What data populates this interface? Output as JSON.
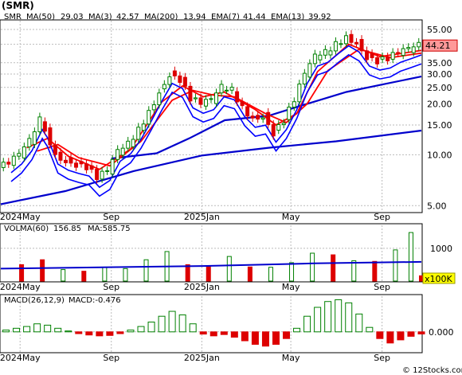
{
  "title": "(SMR)",
  "watermark": "© 12Stocks.com",
  "colors": {
    "up": "#008000",
    "down": "#dd0000",
    "ma_short": "#0000ff",
    "ma_long": "#0000cc",
    "ema": "#ff0000",
    "vol_up": "#008000",
    "vol_down": "#dd0000",
    "macd_up": "#008000",
    "macd_down": "#dd0000",
    "grid": "#bbbbbb",
    "price_box": "#ff9999",
    "vol_box": "#ffff00"
  },
  "chart_data": [
    {
      "type": "candlestick",
      "ticker": "SMR",
      "scale": "log",
      "legend": {
        "ticker": "SMR",
        "ma50": "MA(50)",
        "ma50_value": "29.03",
        "ma3": "MA(3)",
        "ma3_value": "42.57",
        "ma200": "MA(200)",
        "ma200_value": "13.94",
        "ema7": "EMA(7)",
        "ema7_value": "41.44",
        "ema13": "EMA(13)",
        "ema13_value": "39.92"
      },
      "last_price_label": "44.21",
      "last_price": 44.21,
      "y_ticks": [
        {
          "label": "55.00",
          "value": 55
        },
        {
          "label": "45.00",
          "value": 45
        },
        {
          "label": "35.00",
          "value": 35
        },
        {
          "label": "30.00",
          "value": 30
        },
        {
          "label": "25.00",
          "value": 25
        },
        {
          "label": "20.00",
          "value": 20
        },
        {
          "label": "15.00",
          "value": 15
        },
        {
          "label": "10.00",
          "value": 10
        },
        {
          "label": "5.00",
          "value": 5
        }
      ],
      "y_range": [
        4.6,
        62
      ],
      "x_ticks": [
        {
          "label": "2024May",
          "date": "2024-05-01"
        },
        {
          "label": "Sep",
          "date": "2024-09-01"
        },
        {
          "label": "2025Jan",
          "date": "2025-01-01"
        },
        {
          "label": "May",
          "date": "2025-05-01"
        },
        {
          "label": "Sep",
          "date": "2025-09-01"
        }
      ],
      "x_range": [
        "2024-04-05",
        "2025-10-24"
      ],
      "closes": [
        {
          "date": "2024-04-05",
          "value": 8.4
        },
        {
          "date": "2024-04-19",
          "value": 8.9
        },
        {
          "date": "2024-05-03",
          "value": 10.0
        },
        {
          "date": "2024-05-17",
          "value": 12.0
        },
        {
          "date": "2024-05-31",
          "value": 16.0
        },
        {
          "date": "2024-06-07",
          "value": 14.3
        },
        {
          "date": "2024-06-21",
          "value": 10.0
        },
        {
          "date": "2024-07-05",
          "value": 9.2
        },
        {
          "date": "2024-07-19",
          "value": 8.8
        },
        {
          "date": "2024-08-02",
          "value": 8.5
        },
        {
          "date": "2024-08-16",
          "value": 7.3
        },
        {
          "date": "2024-08-30",
          "value": 8.0
        },
        {
          "date": "2024-09-13",
          "value": 10.4
        },
        {
          "date": "2024-09-27",
          "value": 11.5
        },
        {
          "date": "2024-10-11",
          "value": 14.0
        },
        {
          "date": "2024-10-25",
          "value": 18.0
        },
        {
          "date": "2024-11-08",
          "value": 23.5
        },
        {
          "date": "2024-11-22",
          "value": 30.0
        },
        {
          "date": "2024-12-06",
          "value": 28.0
        },
        {
          "date": "2024-12-20",
          "value": 21.5
        },
        {
          "date": "2025-01-03",
          "value": 20.0
        },
        {
          "date": "2025-01-17",
          "value": 21.0
        },
        {
          "date": "2025-01-31",
          "value": 25.0
        },
        {
          "date": "2025-02-14",
          "value": 24.0
        },
        {
          "date": "2025-02-28",
          "value": 19.0
        },
        {
          "date": "2025-03-14",
          "value": 16.5
        },
        {
          "date": "2025-03-28",
          "value": 17.0
        },
        {
          "date": "2025-04-11",
          "value": 13.5
        },
        {
          "date": "2025-04-25",
          "value": 16.0
        },
        {
          "date": "2025-05-09",
          "value": 21.0
        },
        {
          "date": "2025-05-23",
          "value": 30.0
        },
        {
          "date": "2025-06-06",
          "value": 38.0
        },
        {
          "date": "2025-06-20",
          "value": 40.0
        },
        {
          "date": "2025-07-04",
          "value": 45.0
        },
        {
          "date": "2025-07-18",
          "value": 50.0
        },
        {
          "date": "2025-08-01",
          "value": 46.0
        },
        {
          "date": "2025-08-15",
          "value": 38.0
        },
        {
          "date": "2025-08-29",
          "value": 36.0
        },
        {
          "date": "2025-09-12",
          "value": 37.0
        },
        {
          "date": "2025-09-26",
          "value": 40.0
        },
        {
          "date": "2025-10-10",
          "value": 42.0
        },
        {
          "date": "2025-10-24",
          "value": 44.2
        }
      ],
      "series": [
        {
          "name": "MA(200)",
          "values": [
            {
              "date": "2024-04-05",
              "value": 5.1
            },
            {
              "date": "2024-07-01",
              "value": 6.1
            },
            {
              "date": "2024-10-01",
              "value": 8.0
            },
            {
              "date": "2025-01-01",
              "value": 9.9
            },
            {
              "date": "2025-04-01",
              "value": 11.0
            },
            {
              "date": "2025-07-01",
              "value": 12.0
            },
            {
              "date": "2025-10-24",
              "value": 13.9
            }
          ]
        },
        {
          "name": "MA(50)",
          "values": [
            {
              "date": "2024-09-01",
              "value": 9.5
            },
            {
              "date": "2024-11-01",
              "value": 10.2
            },
            {
              "date": "2024-12-15",
              "value": 12.5
            },
            {
              "date": "2025-02-01",
              "value": 16.0
            },
            {
              "date": "2025-04-01",
              "value": 17.0
            },
            {
              "date": "2025-05-15",
              "value": 19.5
            },
            {
              "date": "2025-07-15",
              "value": 23.5
            },
            {
              "date": "2025-09-01",
              "value": 26.0
            },
            {
              "date": "2025-10-24",
              "value": 29.0
            }
          ]
        },
        {
          "name": "EMA(7)",
          "values": [
            {
              "date": "2024-05-10",
              "value": 11.0
            },
            {
              "date": "2024-06-07",
              "value": 12.5
            },
            {
              "date": "2024-07-05",
              "value": 9.8
            },
            {
              "date": "2024-08-16",
              "value": 8.2
            },
            {
              "date": "2024-09-27",
              "value": 10.8
            },
            {
              "date": "2024-11-08",
              "value": 20.5
            },
            {
              "date": "2024-12-06",
              "value": 25.5
            },
            {
              "date": "2025-01-03",
              "value": 22.0
            },
            {
              "date": "2025-01-31",
              "value": 23.5
            },
            {
              "date": "2025-03-14",
              "value": 18.5
            },
            {
              "date": "2025-04-11",
              "value": 15.0
            },
            {
              "date": "2025-05-09",
              "value": 17.5
            },
            {
              "date": "2025-06-06",
              "value": 31.0
            },
            {
              "date": "2025-07-18",
              "value": 45.0
            },
            {
              "date": "2025-08-29",
              "value": 38.0
            },
            {
              "date": "2025-10-24",
              "value": 41.4
            }
          ]
        },
        {
          "name": "EMA(13)",
          "values": [
            {
              "date": "2024-05-24",
              "value": 10.5
            },
            {
              "date": "2024-06-21",
              "value": 11.5
            },
            {
              "date": "2024-07-19",
              "value": 9.6
            },
            {
              "date": "2024-08-30",
              "value": 8.6
            },
            {
              "date": "2024-10-11",
              "value": 12.0
            },
            {
              "date": "2024-11-22",
              "value": 21.0
            },
            {
              "date": "2024-12-20",
              "value": 24.0
            },
            {
              "date": "2025-01-17",
              "value": 22.5
            },
            {
              "date": "2025-02-14",
              "value": 22.0
            },
            {
              "date": "2025-03-28",
              "value": 17.5
            },
            {
              "date": "2025-04-25",
              "value": 15.5
            },
            {
              "date": "2025-05-23",
              "value": 20.0
            },
            {
              "date": "2025-06-20",
              "value": 31.5
            },
            {
              "date": "2025-08-01",
              "value": 42.0
            },
            {
              "date": "2025-09-12",
              "value": 37.5
            },
            {
              "date": "2025-10-24",
              "value": 39.9
            }
          ]
        }
      ]
    },
    {
      "type": "bar",
      "name": "volume",
      "legend": {
        "label": "VOLMA(60)",
        "value": "156.85",
        "ma_label": "MA:585.75"
      },
      "unit_label": "x100K",
      "y_ticks": [
        {
          "label": "1000",
          "value": 1000
        }
      ],
      "y_range": [
        0,
        1700
      ],
      "x_ticks": [
        {
          "label": "2024May",
          "date": "2024-05-01"
        },
        {
          "label": "Sep",
          "date": "2024-09-01"
        },
        {
          "label": "2025Jan",
          "date": "2025-01-01"
        },
        {
          "label": "May",
          "date": "2025-05-01"
        },
        {
          "label": "Sep",
          "date": "2025-09-01"
        }
      ],
      "bars": [
        {
          "date": "2024-05-03",
          "value": 500,
          "dir": "down"
        },
        {
          "date": "2024-05-31",
          "value": 650,
          "dir": "down"
        },
        {
          "date": "2024-06-28",
          "value": 350,
          "dir": "up"
        },
        {
          "date": "2024-07-26",
          "value": 300,
          "dir": "down"
        },
        {
          "date": "2024-08-23",
          "value": 420,
          "dir": "up"
        },
        {
          "date": "2024-09-20",
          "value": 380,
          "dir": "up"
        },
        {
          "date": "2024-10-18",
          "value": 650,
          "dir": "up"
        },
        {
          "date": "2024-11-15",
          "value": 900,
          "dir": "up"
        },
        {
          "date": "2024-12-13",
          "value": 500,
          "dir": "down"
        },
        {
          "date": "2025-01-10",
          "value": 460,
          "dir": "down"
        },
        {
          "date": "2025-02-07",
          "value": 750,
          "dir": "up"
        },
        {
          "date": "2025-03-07",
          "value": 430,
          "dir": "down"
        },
        {
          "date": "2025-04-04",
          "value": 420,
          "dir": "up"
        },
        {
          "date": "2025-05-02",
          "value": 560,
          "dir": "up"
        },
        {
          "date": "2025-05-30",
          "value": 850,
          "dir": "up"
        },
        {
          "date": "2025-06-27",
          "value": 800,
          "dir": "down"
        },
        {
          "date": "2025-07-25",
          "value": 620,
          "dir": "up"
        },
        {
          "date": "2025-08-22",
          "value": 600,
          "dir": "down"
        },
        {
          "date": "2025-09-19",
          "value": 950,
          "dir": "up"
        },
        {
          "date": "2025-10-10",
          "value": 1480,
          "dir": "up"
        },
        {
          "date": "2025-10-24",
          "value": 160,
          "dir": "down"
        }
      ],
      "ma_line": [
        {
          "date": "2024-04-05",
          "value": 380
        },
        {
          "date": "2025-01-01",
          "value": 460
        },
        {
          "date": "2025-06-01",
          "value": 540
        },
        {
          "date": "2025-10-24",
          "value": 585
        }
      ]
    },
    {
      "type": "bar",
      "name": "macd",
      "legend": {
        "label": "MACD(26,12,9)",
        "value": "MACD:-0.476"
      },
      "y_ticks": [
        {
          "label": "0.000",
          "value": 0
        }
      ],
      "y_range": [
        -4.5,
        8
      ],
      "x_ticks": [
        {
          "label": "2024May",
          "date": "2024-05-01"
        },
        {
          "label": "Sep",
          "date": "2024-09-01"
        },
        {
          "label": "2025Jan",
          "date": "2025-01-01"
        },
        {
          "label": "May",
          "date": "2025-05-01"
        },
        {
          "label": "Sep",
          "date": "2025-09-01"
        }
      ],
      "bars": [
        {
          "date": "2024-04-12",
          "value": 0.4
        },
        {
          "date": "2024-04-26",
          "value": 0.8
        },
        {
          "date": "2024-05-10",
          "value": 1.2
        },
        {
          "date": "2024-05-24",
          "value": 1.8
        },
        {
          "date": "2024-06-07",
          "value": 1.5
        },
        {
          "date": "2024-06-21",
          "value": 0.8
        },
        {
          "date": "2024-07-05",
          "value": 0.2
        },
        {
          "date": "2024-07-19",
          "value": -0.4
        },
        {
          "date": "2024-08-02",
          "value": -0.7
        },
        {
          "date": "2024-08-16",
          "value": -0.9
        },
        {
          "date": "2024-08-30",
          "value": -0.8
        },
        {
          "date": "2024-09-13",
          "value": -0.4
        },
        {
          "date": "2024-09-27",
          "value": 0.4
        },
        {
          "date": "2024-10-11",
          "value": 1.2
        },
        {
          "date": "2024-10-25",
          "value": 2.2
        },
        {
          "date": "2024-11-08",
          "value": 3.5
        },
        {
          "date": "2024-11-22",
          "value": 4.6
        },
        {
          "date": "2024-12-06",
          "value": 3.8
        },
        {
          "date": "2024-12-20",
          "value": 1.8
        },
        {
          "date": "2025-01-03",
          "value": -0.5
        },
        {
          "date": "2025-01-17",
          "value": -0.9
        },
        {
          "date": "2025-01-31",
          "value": -0.6
        },
        {
          "date": "2025-02-14",
          "value": -1.2
        },
        {
          "date": "2025-02-28",
          "value": -2.0
        },
        {
          "date": "2025-03-14",
          "value": -2.8
        },
        {
          "date": "2025-03-28",
          "value": -3.2
        },
        {
          "date": "2025-04-11",
          "value": -2.8
        },
        {
          "date": "2025-04-25",
          "value": -1.5
        },
        {
          "date": "2025-05-09",
          "value": 0.8
        },
        {
          "date": "2025-05-23",
          "value": 3.5
        },
        {
          "date": "2025-06-06",
          "value": 5.5
        },
        {
          "date": "2025-06-20",
          "value": 6.8
        },
        {
          "date": "2025-07-04",
          "value": 7.2
        },
        {
          "date": "2025-07-18",
          "value": 6.5
        },
        {
          "date": "2025-08-01",
          "value": 4.0
        },
        {
          "date": "2025-08-15",
          "value": 1.0
        },
        {
          "date": "2025-08-29",
          "value": -1.5
        },
        {
          "date": "2025-09-12",
          "value": -2.5
        },
        {
          "date": "2025-09-26",
          "value": -1.8
        },
        {
          "date": "2025-10-10",
          "value": -1.0
        },
        {
          "date": "2025-10-24",
          "value": -0.48
        }
      ]
    }
  ]
}
